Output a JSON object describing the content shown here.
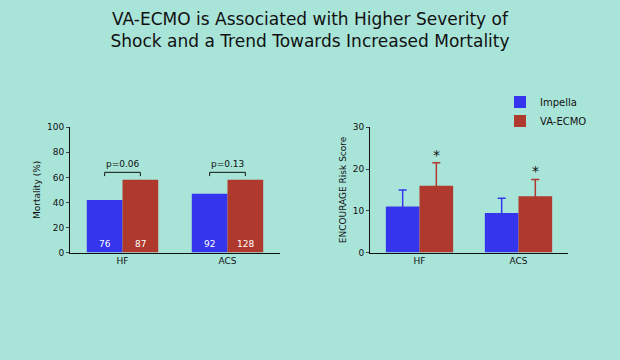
{
  "title": [
    "VA-ECMO is Associated with Higher Severity of",
    "Shock and a Trend Towards Increased Mortality"
  ],
  "chart_data": [
    {
      "type": "bar",
      "categories": [
        "HF",
        "ACS"
      ],
      "ylabel": "Mortality (%)",
      "ylim": [
        0,
        100
      ],
      "yticks": [
        0,
        20,
        40,
        60,
        80,
        100
      ],
      "grid": false,
      "series": [
        {
          "name": "Impella",
          "color": "#3535ee",
          "values": [
            42,
            47
          ],
          "n": [
            76,
            92
          ]
        },
        {
          "name": "VA-ECMO",
          "color": "#b0392e",
          "values": [
            58,
            58
          ],
          "n": [
            87,
            128
          ]
        }
      ],
      "annotations": [
        {
          "category": "HF",
          "text": "p=0.06"
        },
        {
          "category": "ACS",
          "text": "p=0.13"
        }
      ]
    },
    {
      "type": "bar",
      "categories": [
        "HF",
        "ACS"
      ],
      "ylabel": "ENCOURAGE Risk Score",
      "ylim": [
        0,
        30
      ],
      "yticks": [
        0,
        10,
        20,
        30
      ],
      "grid": false,
      "legend": "upper right",
      "series": [
        {
          "name": "Impella",
          "color": "#3535ee",
          "values": [
            11,
            9.5
          ],
          "errors": [
            4,
            3.5
          ]
        },
        {
          "name": "VA-ECMO",
          "color": "#b0392e",
          "values": [
            16,
            13.5
          ],
          "errors": [
            5.5,
            4
          ]
        }
      ],
      "annotations": [
        {
          "category": "HF",
          "series": "VA-ECMO",
          "text": "*"
        },
        {
          "category": "ACS",
          "series": "VA-ECMO",
          "text": "*"
        }
      ]
    }
  ]
}
